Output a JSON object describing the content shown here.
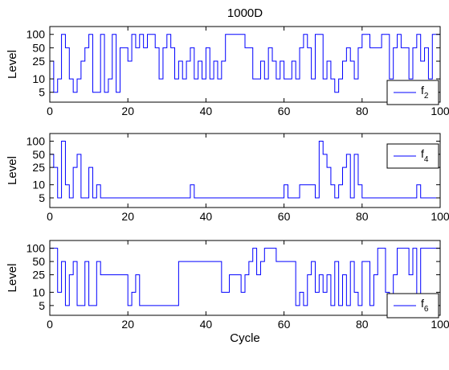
{
  "chart_data": [
    {
      "type": "line",
      "title": "1000D",
      "xlabel": "",
      "ylabel": "Level",
      "xlim": [
        0,
        100
      ],
      "ylim": [
        3,
        150
      ],
      "y_scale": "log",
      "x_ticks": [
        "0",
        "20",
        "40",
        "60",
        "80",
        "100"
      ],
      "y_ticks": [
        "5",
        "10",
        "25",
        "50",
        "100"
      ],
      "line_color": "#0000ff",
      "series": [
        {
          "name": "f2",
          "x": [
            0,
            1,
            1,
            2,
            2,
            3,
            3,
            4,
            4,
            5,
            5,
            6,
            6,
            7,
            7,
            8,
            8,
            9,
            9,
            10,
            10,
            11,
            11,
            13,
            13,
            14,
            14,
            15,
            15,
            16,
            16,
            17,
            17,
            18,
            18,
            20,
            20,
            21,
            21,
            22,
            22,
            23,
            23,
            24,
            24,
            25,
            25,
            27,
            27,
            28,
            28,
            29,
            29,
            30,
            30,
            31,
            31,
            32,
            32,
            33,
            33,
            34,
            34,
            35,
            35,
            36,
            36,
            37,
            37,
            38,
            38,
            39,
            39,
            40,
            40,
            41,
            41,
            42,
            42,
            43,
            43,
            44,
            44,
            45,
            45,
            50,
            50,
            52,
            52,
            54,
            54,
            55,
            55,
            56,
            56,
            57,
            57,
            58,
            58,
            59,
            59,
            60,
            60,
            62,
            62,
            63,
            63,
            64,
            64,
            65,
            65,
            66,
            66,
            67,
            67,
            68,
            68,
            70,
            70,
            71,
            71,
            72,
            72,
            73,
            73,
            74,
            74,
            75,
            75,
            76,
            76,
            77,
            77,
            78,
            78,
            79,
            79,
            80,
            80,
            82,
            82,
            85,
            85,
            87,
            87,
            88,
            88,
            89,
            89,
            90,
            90,
            92,
            92,
            93,
            93,
            94,
            94,
            95,
            95,
            96,
            96,
            97,
            97,
            98,
            98,
            100
          ],
          "y": [
            25,
            25,
            5,
            5,
            10,
            10,
            100,
            100,
            50,
            50,
            10,
            10,
            5,
            5,
            10,
            10,
            25,
            25,
            50,
            50,
            100,
            100,
            5,
            5,
            100,
            100,
            5,
            5,
            10,
            10,
            100,
            100,
            5,
            5,
            50,
            50,
            25,
            25,
            100,
            100,
            50,
            50,
            100,
            100,
            50,
            50,
            100,
            100,
            50,
            50,
            10,
            10,
            50,
            50,
            100,
            100,
            50,
            50,
            10,
            10,
            25,
            25,
            10,
            10,
            25,
            25,
            50,
            50,
            10,
            10,
            25,
            25,
            10,
            10,
            50,
            50,
            10,
            10,
            25,
            25,
            10,
            10,
            25,
            25,
            100,
            100,
            50,
            50,
            10,
            10,
            25,
            25,
            10,
            10,
            50,
            50,
            25,
            25,
            10,
            10,
            25,
            25,
            10,
            10,
            25,
            25,
            10,
            10,
            50,
            50,
            100,
            100,
            50,
            50,
            10,
            10,
            100,
            100,
            10,
            10,
            25,
            25,
            10,
            10,
            5,
            5,
            10,
            10,
            25,
            25,
            50,
            50,
            25,
            25,
            10,
            10,
            50,
            50,
            100,
            100,
            50,
            50,
            100,
            100,
            10,
            10,
            50,
            50,
            100,
            100,
            50,
            50,
            10,
            10,
            50,
            50,
            100,
            100,
            25,
            25,
            50,
            50,
            10,
            10,
            100,
            100
          ]
        }
      ],
      "legend": "bottom-right",
      "grid": false
    },
    {
      "type": "line",
      "title": "",
      "xlabel": "",
      "ylabel": "Level",
      "xlim": [
        0,
        100
      ],
      "ylim": [
        3,
        150
      ],
      "y_scale": "log",
      "x_ticks": [
        "0",
        "20",
        "40",
        "60",
        "80",
        "100"
      ],
      "y_ticks": [
        "5",
        "10",
        "25",
        "50",
        "100"
      ],
      "line_color": "#0000ff",
      "series": [
        {
          "name": "f4",
          "x": [
            0,
            1,
            1,
            2,
            2,
            3,
            3,
            4,
            4,
            5,
            5,
            6,
            6,
            7,
            7,
            8,
            8,
            9,
            9,
            10,
            10,
            11,
            11,
            12,
            12,
            13,
            13,
            36,
            36,
            37,
            37,
            60,
            60,
            61,
            61,
            64,
            64,
            68,
            68,
            69,
            69,
            70,
            70,
            71,
            71,
            72,
            72,
            73,
            73,
            74,
            74,
            75,
            75,
            76,
            76,
            77,
            77,
            78,
            78,
            79,
            79,
            80,
            80,
            94,
            94,
            95,
            95,
            100
          ],
          "y": [
            50,
            50,
            25,
            25,
            5,
            5,
            100,
            100,
            10,
            10,
            5,
            5,
            25,
            25,
            50,
            50,
            5,
            5,
            5,
            5,
            25,
            25,
            5,
            5,
            10,
            10,
            5,
            5,
            10,
            10,
            5,
            5,
            10,
            10,
            5,
            5,
            10,
            10,
            5,
            5,
            100,
            100,
            50,
            50,
            25,
            25,
            10,
            10,
            5,
            5,
            10,
            10,
            25,
            25,
            50,
            50,
            5,
            5,
            50,
            50,
            10,
            10,
            5,
            5,
            10,
            10,
            5,
            5
          ]
        }
      ],
      "legend": "top-right",
      "grid": false
    },
    {
      "type": "line",
      "title": "",
      "xlabel": "Cycle",
      "ylabel": "Level",
      "xlim": [
        0,
        100
      ],
      "ylim": [
        3,
        150
      ],
      "y_scale": "log",
      "x_ticks": [
        "0",
        "20",
        "40",
        "60",
        "80",
        "100"
      ],
      "y_ticks": [
        "5",
        "10",
        "25",
        "50",
        "100"
      ],
      "line_color": "#0000ff",
      "series": [
        {
          "name": "f6",
          "x": [
            0,
            2,
            2,
            3,
            3,
            4,
            4,
            5,
            5,
            6,
            6,
            7,
            7,
            9,
            9,
            10,
            10,
            12,
            12,
            13,
            13,
            14,
            14,
            20,
            20,
            21,
            21,
            22,
            22,
            23,
            23,
            27,
            27,
            33,
            33,
            44,
            44,
            46,
            46,
            49,
            49,
            50,
            50,
            51,
            51,
            52,
            52,
            53,
            53,
            54,
            54,
            55,
            55,
            56,
            56,
            57,
            57,
            58,
            58,
            63,
            63,
            64,
            64,
            65,
            65,
            66,
            66,
            67,
            67,
            68,
            68,
            69,
            69,
            70,
            70,
            71,
            71,
            72,
            72,
            73,
            73,
            74,
            74,
            75,
            75,
            76,
            76,
            77,
            77,
            78,
            78,
            79,
            79,
            80,
            80,
            82,
            82,
            83,
            83,
            84,
            84,
            86,
            86,
            87,
            87,
            88,
            88,
            89,
            89,
            92,
            92,
            93,
            93,
            94,
            94,
            95,
            95,
            96,
            96,
            100
          ],
          "y": [
            100,
            100,
            10,
            10,
            50,
            50,
            5,
            5,
            25,
            25,
            50,
            50,
            5,
            5,
            50,
            50,
            5,
            5,
            50,
            50,
            25,
            25,
            25,
            25,
            5,
            5,
            10,
            10,
            25,
            25,
            5,
            5,
            5,
            5,
            50,
            50,
            10,
            10,
            25,
            25,
            10,
            10,
            25,
            25,
            50,
            50,
            100,
            100,
            25,
            25,
            50,
            50,
            100,
            100,
            100,
            100,
            100,
            100,
            50,
            50,
            5,
            5,
            10,
            10,
            5,
            5,
            25,
            25,
            50,
            50,
            10,
            10,
            25,
            25,
            10,
            10,
            25,
            25,
            5,
            5,
            50,
            50,
            5,
            5,
            25,
            25,
            5,
            5,
            50,
            50,
            10,
            10,
            5,
            5,
            50,
            50,
            5,
            5,
            25,
            25,
            100,
            100,
            10,
            10,
            5,
            5,
            25,
            25,
            100,
            100,
            25,
            25,
            100,
            100,
            5,
            5,
            100,
            100,
            100,
            100
          ]
        }
      ],
      "legend": "bottom-right",
      "grid": false
    }
  ]
}
